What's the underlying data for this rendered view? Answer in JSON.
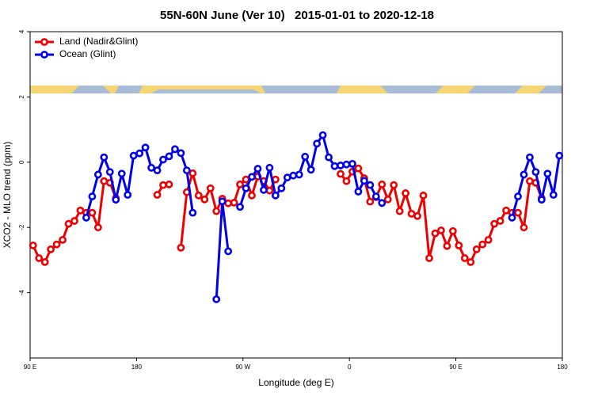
{
  "chart_data": {
    "type": "line",
    "title": "55N-60N June (Ver 10)   2015-01-01 to 2020-12-18",
    "xlabel": "Longitude (deg E)",
    "ylabel": "XCO2 - MLO trend (ppm)",
    "xlim": [
      90,
      540
    ],
    "ylim": [
      -6,
      4
    ],
    "xticks": [
      {
        "value": 90,
        "label": "90 E"
      },
      180,
      {
        "value": 270,
        "label": "90 W"
      },
      {
        "value": 360,
        "label": "0"
      },
      {
        "value": 450,
        "label": "90 E"
      },
      {
        "value": 540,
        "label": "180"
      }
    ],
    "yticks": [
      -4,
      -2,
      0,
      2,
      4
    ],
    "grid": false,
    "legend": "top-left",
    "x": [
      92.5,
      97.5,
      102.5,
      107.5,
      112.5,
      117.5,
      122.5,
      127.5,
      132.5,
      137.5,
      142.5,
      147.5,
      152.5,
      157.5,
      162.5,
      167.5,
      172.5,
      177.5,
      182.5,
      187.5,
      192.5,
      197.5,
      202.5,
      207.5,
      212.5,
      217.5,
      222.5,
      227.5,
      232.5,
      237.5,
      242.5,
      247.5,
      252.5,
      257.5,
      262.5,
      267.5,
      272.5,
      277.5,
      282.5,
      287.5,
      292.5,
      297.5,
      302.5,
      307.5,
      312.5,
      317.5,
      322.5,
      327.5,
      332.5,
      337.5,
      342.5,
      347.5,
      352.5,
      357.5,
      362.5,
      367.5,
      372.5,
      377.5,
      382.5,
      387.5,
      392.5,
      397.5,
      402.5,
      407.5,
      412.5,
      417.5,
      422.5,
      427.5,
      432.5,
      437.5,
      442.5,
      447.5,
      452.5,
      457.5,
      462.5,
      467.5,
      472.5,
      477.5,
      482.5,
      487.5,
      492.5,
      497.5,
      502.5,
      507.5,
      512.5,
      517.5,
      522.5,
      527.5,
      532.5,
      537.5
    ],
    "series": [
      {
        "name": "Land (Nadir&Glint)",
        "color": "#ee0000",
        "values": [
          -2.55,
          -2.94,
          -3.06,
          -2.67,
          -2.52,
          -2.38,
          -1.89,
          -1.8,
          -1.48,
          -1.55,
          -1.55,
          -2.0,
          -0.58,
          -0.63,
          -1.1,
          null,
          null,
          null,
          null,
          null,
          null,
          -1.0,
          -0.7,
          -0.68,
          null,
          -2.62,
          -0.92,
          -0.34,
          -1.02,
          -1.14,
          -0.8,
          -1.5,
          -1.12,
          -1.26,
          -1.24,
          -0.68,
          -0.53,
          -1.02,
          -0.44,
          -0.58,
          -0.87,
          -0.53,
          null,
          null,
          null,
          null,
          null,
          null,
          null,
          null,
          null,
          null,
          -0.36,
          -0.58,
          -0.29,
          -0.19,
          -0.49,
          -1.21,
          -1.07,
          -0.68,
          -1.14,
          -0.7,
          -1.5,
          -0.95,
          -1.58,
          -1.65,
          -1.02,
          -2.94,
          -2.18,
          -2.09,
          -2.57,
          -2.11,
          -2.55,
          -2.94,
          -3.06,
          -2.67,
          -2.52,
          -2.38,
          -1.89,
          -1.8,
          -1.48,
          -1.55,
          -1.55,
          -2.0,
          -0.58,
          -0.63,
          -1.1,
          null,
          null,
          null
        ]
      },
      {
        "name": "Ocean (Glint)",
        "color": "#0000ee",
        "values": [
          null,
          null,
          null,
          null,
          null,
          null,
          null,
          null,
          null,
          -1.7,
          -1.05,
          -0.38,
          0.15,
          -0.3,
          -1.15,
          -0.35,
          -1.0,
          0.2,
          0.27,
          0.45,
          -0.17,
          -0.25,
          0.08,
          0.18,
          0.4,
          0.28,
          -0.25,
          -1.55,
          null,
          null,
          null,
          -4.2,
          -1.2,
          -2.73,
          null,
          -1.37,
          -0.8,
          -0.45,
          -0.2,
          -0.85,
          -0.17,
          -1.02,
          -0.8,
          -0.47,
          -0.41,
          -0.38,
          0.17,
          -0.23,
          0.57,
          0.83,
          0.15,
          -0.12,
          -0.1,
          -0.07,
          -0.05,
          -0.9,
          -0.57,
          -0.7,
          -1.05,
          -1.25,
          null,
          null,
          null,
          null,
          null,
          null,
          null,
          null,
          null,
          null,
          null,
          null,
          null,
          null,
          null,
          null,
          null,
          null,
          null,
          null,
          null,
          -1.7,
          -1.05,
          -0.38,
          0.15,
          -0.3,
          -1.15,
          -0.35,
          -1.0,
          0.2
        ]
      }
    ]
  }
}
